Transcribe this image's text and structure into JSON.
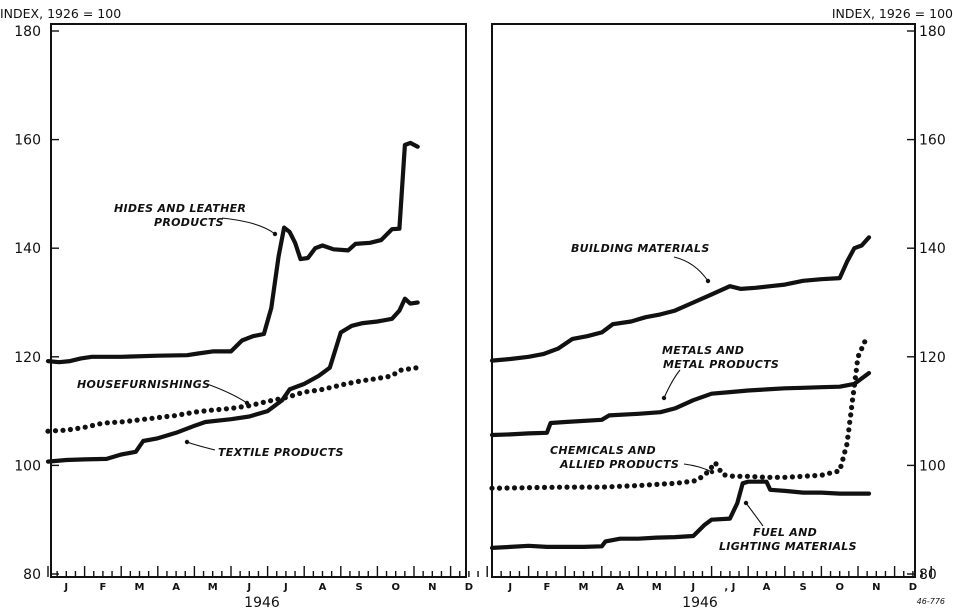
{
  "header_left": "INDEX, 1926 = 100",
  "header_right": "INDEX, 1926 = 100",
  "figure_code": "46-776",
  "chart_data": [
    {
      "type": "line",
      "panel": "left",
      "year_label": "1946",
      "months": [
        "J",
        "F",
        "M",
        "A",
        "M",
        "J",
        "J",
        "A",
        "S",
        "O",
        "N",
        "D"
      ],
      "y_ticks": [
        80,
        100,
        120,
        140,
        160,
        180
      ],
      "ylim": [
        80,
        180
      ],
      "xlim": [
        0,
        12
      ],
      "series": [
        {
          "name": "HIDES AND LEATHER PRODUCTS",
          "label_lines": [
            "HIDES AND LEATHER",
            "PRODUCTS"
          ],
          "style": "solid",
          "points": [
            [
              0.0,
              119.2
            ],
            [
              0.3,
              119.0
            ],
            [
              0.6,
              119.2
            ],
            [
              0.9,
              119.7
            ],
            [
              1.2,
              120.0
            ],
            [
              2.0,
              120.0
            ],
            [
              3.0,
              120.2
            ],
            [
              3.8,
              120.3
            ],
            [
              4.1,
              120.6
            ],
            [
              4.5,
              121.0
            ],
            [
              5.0,
              121.0
            ],
            [
              5.3,
              123.0
            ],
            [
              5.6,
              123.8
            ],
            [
              5.9,
              124.2
            ],
            [
              6.1,
              129.0
            ],
            [
              6.3,
              138.5
            ],
            [
              6.45,
              143.8
            ],
            [
              6.6,
              143.0
            ],
            [
              6.75,
              141.0
            ],
            [
              6.9,
              138.0
            ],
            [
              7.1,
              138.2
            ],
            [
              7.3,
              140.0
            ],
            [
              7.5,
              140.5
            ],
            [
              7.8,
              139.8
            ],
            [
              8.2,
              139.6
            ],
            [
              8.4,
              140.8
            ],
            [
              8.8,
              141.0
            ],
            [
              9.1,
              141.5
            ],
            [
              9.4,
              143.5
            ],
            [
              9.6,
              143.6
            ],
            [
              9.75,
              159.0
            ],
            [
              9.9,
              159.4
            ],
            [
              10.1,
              158.7
            ]
          ]
        },
        {
          "name": "TEXTILE PRODUCTS",
          "label_lines": [
            "TEXTILE PRODUCTS"
          ],
          "style": "solid",
          "points": [
            [
              0.0,
              100.7
            ],
            [
              0.5,
              101.0
            ],
            [
              1.0,
              101.1
            ],
            [
              1.6,
              101.2
            ],
            [
              2.0,
              102.0
            ],
            [
              2.4,
              102.5
            ],
            [
              2.6,
              104.5
            ],
            [
              3.0,
              105.0
            ],
            [
              3.5,
              106.0
            ],
            [
              4.0,
              107.3
            ],
            [
              4.3,
              108.0
            ],
            [
              5.0,
              108.5
            ],
            [
              5.5,
              109.0
            ],
            [
              6.0,
              110.0
            ],
            [
              6.4,
              112.0
            ],
            [
              6.6,
              114.0
            ],
            [
              7.0,
              115.0
            ],
            [
              7.4,
              116.5
            ],
            [
              7.7,
              118.0
            ],
            [
              8.0,
              124.5
            ],
            [
              8.3,
              125.7
            ],
            [
              8.6,
              126.2
            ],
            [
              9.0,
              126.5
            ],
            [
              9.4,
              127.0
            ],
            [
              9.6,
              128.5
            ],
            [
              9.75,
              130.7
            ],
            [
              9.9,
              129.8
            ],
            [
              10.1,
              130.0
            ]
          ]
        },
        {
          "name": "HOUSEFURNISHINGS",
          "label_lines": [
            "HOUSEFURNISHINGS"
          ],
          "style": "dotted",
          "points": [
            [
              0.0,
              106.3
            ],
            [
              0.5,
              106.5
            ],
            [
              1.0,
              107.0
            ],
            [
              1.5,
              107.8
            ],
            [
              2.0,
              108.0
            ],
            [
              2.5,
              108.4
            ],
            [
              3.0,
              108.8
            ],
            [
              3.5,
              109.2
            ],
            [
              4.0,
              109.8
            ],
            [
              4.5,
              110.2
            ],
            [
              5.0,
              110.5
            ],
            [
              5.5,
              111.0
            ],
            [
              6.0,
              111.8
            ],
            [
              6.5,
              112.5
            ],
            [
              7.0,
              113.5
            ],
            [
              7.5,
              114.0
            ],
            [
              8.0,
              114.8
            ],
            [
              8.5,
              115.5
            ],
            [
              9.0,
              116.0
            ],
            [
              9.4,
              116.5
            ],
            [
              9.6,
              117.5
            ],
            [
              10.1,
              118.0
            ]
          ]
        }
      ]
    },
    {
      "type": "line",
      "panel": "right",
      "year_label": "1946",
      "months": [
        "J",
        "F",
        "M",
        "A",
        "M",
        "J",
        ", J",
        "A",
        "S",
        "O",
        "N",
        "D"
      ],
      "y_ticks": [
        80,
        100,
        120,
        140,
        160,
        180
      ],
      "ylim": [
        80,
        180
      ],
      "xlim": [
        0,
        12
      ],
      "series": [
        {
          "name": "BUILDING MATERIALS",
          "label_lines": [
            "BUILDING MATERIALS"
          ],
          "style": "solid",
          "points": [
            [
              0.0,
              119.3
            ],
            [
              0.5,
              119.6
            ],
            [
              1.0,
              120.0
            ],
            [
              1.4,
              120.5
            ],
            [
              1.8,
              121.5
            ],
            [
              2.2,
              123.3
            ],
            [
              2.6,
              123.8
            ],
            [
              3.0,
              124.5
            ],
            [
              3.3,
              126.0
            ],
            [
              3.8,
              126.5
            ],
            [
              4.2,
              127.3
            ],
            [
              4.6,
              127.8
            ],
            [
              5.0,
              128.5
            ],
            [
              5.5,
              130.0
            ],
            [
              6.0,
              131.5
            ],
            [
              6.5,
              133.0
            ],
            [
              6.8,
              132.5
            ],
            [
              7.2,
              132.7
            ],
            [
              7.6,
              133.0
            ],
            [
              8.0,
              133.3
            ],
            [
              8.5,
              134.0
            ],
            [
              9.0,
              134.3
            ],
            [
              9.5,
              134.5
            ],
            [
              9.7,
              137.5
            ],
            [
              9.9,
              140.0
            ],
            [
              10.1,
              140.5
            ],
            [
              10.3,
              142.0
            ]
          ]
        },
        {
          "name": "METALS AND METAL PRODUCTS",
          "label_lines": [
            "METALS AND",
            "METAL PRODUCTS"
          ],
          "style": "solid",
          "points": [
            [
              0.0,
              105.6
            ],
            [
              0.5,
              105.7
            ],
            [
              1.0,
              105.9
            ],
            [
              1.5,
              106.0
            ],
            [
              1.6,
              107.8
            ],
            [
              2.0,
              108.0
            ],
            [
              3.0,
              108.4
            ],
            [
              3.2,
              109.2
            ],
            [
              4.0,
              109.5
            ],
            [
              4.6,
              109.8
            ],
            [
              5.0,
              110.5
            ],
            [
              5.5,
              112.0
            ],
            [
              6.0,
              113.2
            ],
            [
              6.5,
              113.5
            ],
            [
              7.0,
              113.8
            ],
            [
              7.5,
              114.0
            ],
            [
              8.0,
              114.2
            ],
            [
              8.5,
              114.3
            ],
            [
              9.0,
              114.4
            ],
            [
              9.5,
              114.5
            ],
            [
              9.9,
              115.0
            ],
            [
              10.3,
              117.0
            ]
          ]
        },
        {
          "name": "CHEMICALS AND ALLIED PRODUCTS",
          "label_lines": [
            "CHEMICALS AND",
            "ALLIED PRODUCTS"
          ],
          "style": "dotted",
          "points": [
            [
              0.0,
              95.8
            ],
            [
              1.0,
              95.9
            ],
            [
              2.0,
              96.0
            ],
            [
              3.0,
              96.0
            ],
            [
              4.0,
              96.3
            ],
            [
              5.0,
              96.7
            ],
            [
              5.6,
              97.2
            ],
            [
              5.9,
              98.8
            ],
            [
              6.1,
              100.5
            ],
            [
              6.3,
              98.3
            ],
            [
              6.6,
              98.0
            ],
            [
              7.0,
              98.0
            ],
            [
              7.5,
              97.8
            ],
            [
              8.0,
              97.8
            ],
            [
              8.5,
              98.0
            ],
            [
              9.0,
              98.2
            ],
            [
              9.5,
              99.0
            ],
            [
              9.7,
              104.0
            ],
            [
              9.85,
              112.0
            ],
            [
              10.0,
              120.0
            ],
            [
              10.2,
              123.0
            ]
          ]
        },
        {
          "name": "FUEL AND LIGHTING MATERIALS",
          "label_lines": [
            "FUEL AND",
            "LIGHTING MATERIALS"
          ],
          "style": "solid",
          "points": [
            [
              0.0,
              84.8
            ],
            [
              0.5,
              85.0
            ],
            [
              1.0,
              85.2
            ],
            [
              1.5,
              85.0
            ],
            [
              2.0,
              85.0
            ],
            [
              2.5,
              85.0
            ],
            [
              3.0,
              85.1
            ],
            [
              3.1,
              86.0
            ],
            [
              3.5,
              86.5
            ],
            [
              4.0,
              86.5
            ],
            [
              4.5,
              86.7
            ],
            [
              5.0,
              86.8
            ],
            [
              5.5,
              87.0
            ],
            [
              5.8,
              89.0
            ],
            [
              6.0,
              90.0
            ],
            [
              6.5,
              90.2
            ],
            [
              6.7,
              93.0
            ],
            [
              6.85,
              96.7
            ],
            [
              7.0,
              97.0
            ],
            [
              7.5,
              97.0
            ],
            [
              7.6,
              95.5
            ],
            [
              8.0,
              95.3
            ],
            [
              8.5,
              95.0
            ],
            [
              9.0,
              95.0
            ],
            [
              9.5,
              94.8
            ],
            [
              10.0,
              94.8
            ],
            [
              10.3,
              94.8
            ]
          ]
        }
      ]
    }
  ]
}
